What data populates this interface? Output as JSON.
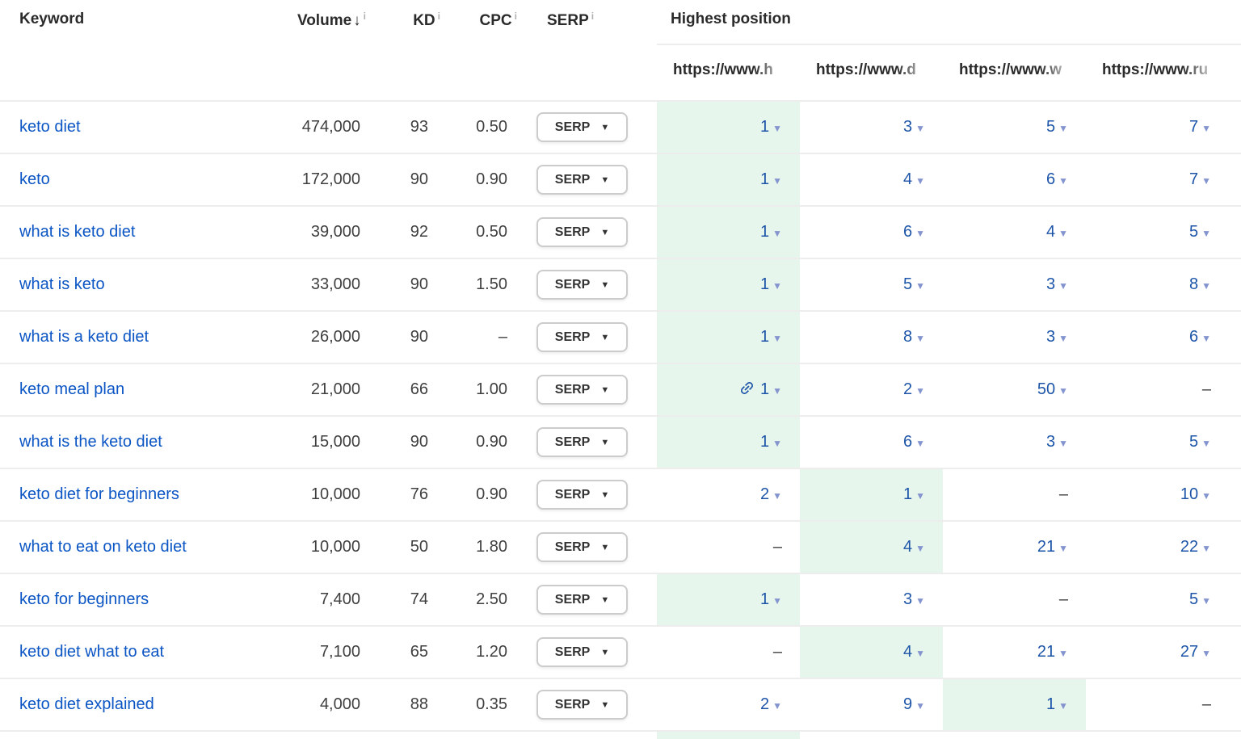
{
  "header": {
    "keyword_label": "Keyword",
    "volume_label": "Volume",
    "volume_sort_icon": "↓",
    "info_icon": "i",
    "kd_label": "KD",
    "cpc_label": "CPC",
    "serp_label": "SERP",
    "highest_position_label": "Highest position",
    "url_columns": [
      "https://www.h",
      "https://www.d",
      "https://www.w",
      "https://www.ru"
    ]
  },
  "serp_button_label": "SERP",
  "dropdown_caret_icon": "▼",
  "dash": "–",
  "colors": {
    "keyword_link": "#0b55c4",
    "position_number": "#1d55a8",
    "position_caret": "#8494cf",
    "best_position_bg": "#e7f6ec",
    "row_text": "#3f3f3f",
    "header_text": "#2b2b2b",
    "info_gray": "#b1b1b1",
    "divider": "#ededed",
    "serp_border": "#cccccc",
    "dash_text": "#3c3c3c",
    "link_icon": "#1d55a8"
  },
  "rows": [
    {
      "keyword": "keto diet",
      "volume": "474,000",
      "kd": "93",
      "cpc": "0.50",
      "positions": [
        "1",
        "3",
        "5",
        "7"
      ],
      "best": 0
    },
    {
      "keyword": "keto",
      "volume": "172,000",
      "kd": "90",
      "cpc": "0.90",
      "positions": [
        "1",
        "4",
        "6",
        "7"
      ],
      "best": 0
    },
    {
      "keyword": "what is keto diet",
      "volume": "39,000",
      "kd": "92",
      "cpc": "0.50",
      "positions": [
        "1",
        "6",
        "4",
        "5"
      ],
      "best": 0
    },
    {
      "keyword": "what is keto",
      "volume": "33,000",
      "kd": "90",
      "cpc": "1.50",
      "positions": [
        "1",
        "5",
        "3",
        "8"
      ],
      "best": 0
    },
    {
      "keyword": "what is a keto diet",
      "volume": "26,000",
      "kd": "90",
      "cpc": null,
      "positions": [
        "1",
        "8",
        "3",
        "6"
      ],
      "best": 0
    },
    {
      "keyword": "keto meal plan",
      "volume": "21,000",
      "kd": "66",
      "cpc": "1.00",
      "positions": [
        "1",
        "2",
        "50",
        null
      ],
      "best": 0,
      "link_icon_col": 0
    },
    {
      "keyword": "what is the keto diet",
      "volume": "15,000",
      "kd": "90",
      "cpc": "0.90",
      "positions": [
        "1",
        "6",
        "3",
        "5"
      ],
      "best": 0
    },
    {
      "keyword": "keto diet for beginners",
      "volume": "10,000",
      "kd": "76",
      "cpc": "0.90",
      "positions": [
        "2",
        "1",
        null,
        "10"
      ],
      "best": 1
    },
    {
      "keyword": "what to eat on keto diet",
      "volume": "10,000",
      "kd": "50",
      "cpc": "1.80",
      "positions": [
        null,
        "4",
        "21",
        "22"
      ],
      "best": 1
    },
    {
      "keyword": "keto for beginners",
      "volume": "7,400",
      "kd": "74",
      "cpc": "2.50",
      "positions": [
        "1",
        "3",
        null,
        "5"
      ],
      "best": 0
    },
    {
      "keyword": "keto diet what to eat",
      "volume": "7,100",
      "kd": "65",
      "cpc": "1.20",
      "positions": [
        null,
        "4",
        "21",
        "27"
      ],
      "best": 1
    },
    {
      "keyword": "keto diet explained",
      "volume": "4,000",
      "kd": "88",
      "cpc": "0.35",
      "positions": [
        "2",
        "9",
        "1",
        null
      ],
      "best": 2
    }
  ],
  "partial_row": {
    "best": 0
  }
}
